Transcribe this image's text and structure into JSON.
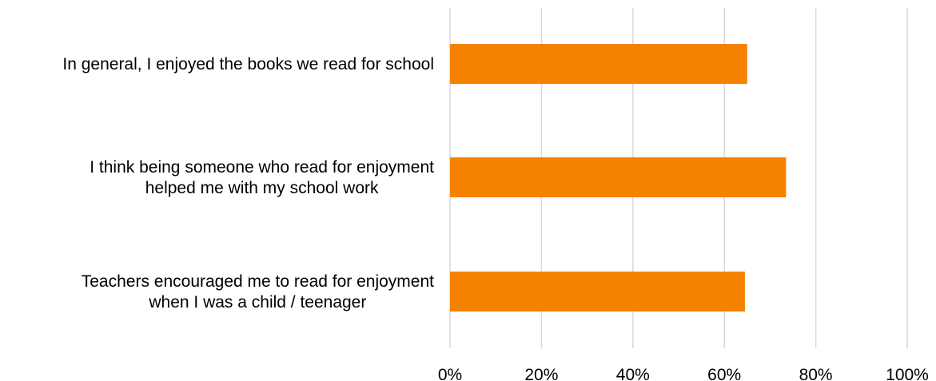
{
  "chart_data": {
    "type": "bar",
    "orientation": "horizontal",
    "categories": [
      [
        "In general, I enjoyed the books we read for school"
      ],
      [
        "I think being someone who read for enjoyment",
        "helped me with my school work"
      ],
      [
        "Teachers encouraged me to read for enjoyment",
        "when I was a child / teenager"
      ]
    ],
    "values": [
      65,
      73.5,
      64.5
    ],
    "unit": "%",
    "xlim": [
      0,
      100
    ],
    "xticks": [
      0,
      20,
      40,
      60,
      80,
      100
    ],
    "xtick_labels": [
      "0%",
      "20%",
      "40%",
      "60%",
      "80%",
      "100%"
    ],
    "title": "",
    "xlabel": "",
    "ylabel": "",
    "grid": "vertical",
    "legend": "none",
    "colors": {
      "bar": "#f58300",
      "grid": "#d9d9d9",
      "text": "#000000"
    }
  }
}
